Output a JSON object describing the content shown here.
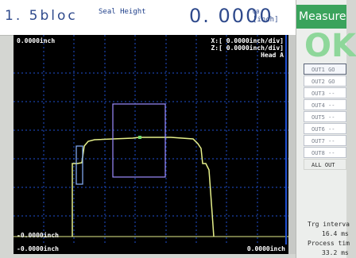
{
  "header": {
    "program_name": "1. 5bloc",
    "measurement_title": "Seal Height",
    "value": "0. 0000",
    "unit_judgement": "G0",
    "unit": "[inch]"
  },
  "graph": {
    "top_left_label": "0.0000inch",
    "x_scale": "X:[ 0.0000inch/div]",
    "z_scale": "Z:[ 0.0000inch/div]",
    "head": "Head A",
    "bottom_left_label": "-0.0000inch",
    "footer_left": "-0.0000inch",
    "footer_right": "0.0000inch",
    "colors": {
      "background": "#000000",
      "grid": "#1f4fd0",
      "profile": "#e6f08a",
      "window": "#9c8cff",
      "marker": "#6cd96c"
    }
  },
  "panel": {
    "measure_title": "Measure",
    "judgement": "OK",
    "outputs": [
      "OUT1 GO",
      "OUT2 GO",
      "OUT3 --",
      "OUT4 --",
      "OUT5 --",
      "OUT6 --",
      "OUT7 --",
      "OUT8 --",
      "ALL OUT"
    ],
    "trigger_label": "Trg interva",
    "trigger_value": "16.4 ms",
    "process_label": "Process tim",
    "process_value": "33.2 ms"
  }
}
